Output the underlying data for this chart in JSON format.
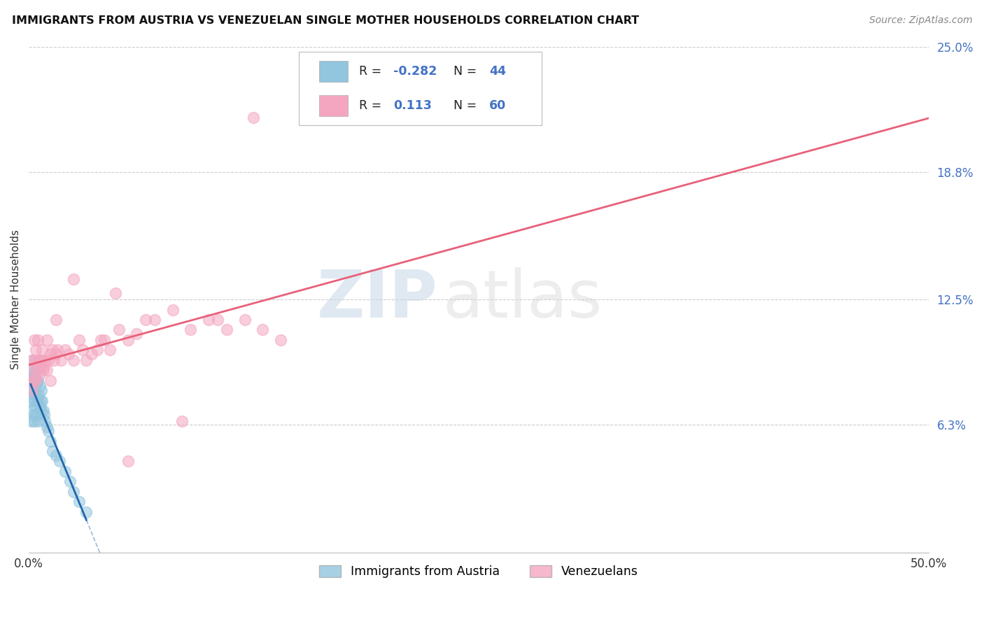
{
  "title": "IMMIGRANTS FROM AUSTRIA VS VENEZUELAN SINGLE MOTHER HOUSEHOLDS CORRELATION CHART",
  "source": "Source: ZipAtlas.com",
  "ylabel": "Single Mother Households",
  "xmin": 0.0,
  "xmax": 50.0,
  "ymin": 0.0,
  "ymax": 25.0,
  "ytick_vals": [
    6.3,
    12.5,
    18.8,
    25.0
  ],
  "xtick_vals": [
    0.0,
    50.0
  ],
  "blue_color": "#92c5de",
  "pink_color": "#f4a6c0",
  "blue_line_color": "#2166ac",
  "pink_line_color": "#e8607a",
  "background_color": "#ffffff",
  "grid_color": "#cccccc",
  "watermark_zip": "ZIP",
  "watermark_atlas": "atlas",
  "austria_x": [
    0.1,
    0.1,
    0.15,
    0.15,
    0.2,
    0.2,
    0.2,
    0.25,
    0.25,
    0.25,
    0.3,
    0.3,
    0.3,
    0.35,
    0.35,
    0.4,
    0.4,
    0.4,
    0.45,
    0.45,
    0.5,
    0.5,
    0.5,
    0.55,
    0.6,
    0.6,
    0.65,
    0.7,
    0.7,
    0.75,
    0.8,
    0.85,
    0.9,
    1.0,
    1.1,
    1.2,
    1.3,
    1.5,
    1.7,
    2.0,
    2.3,
    2.5,
    2.8,
    3.2
  ],
  "austria_y": [
    7.5,
    8.5,
    6.5,
    9.0,
    7.0,
    8.0,
    9.5,
    6.8,
    7.8,
    8.8,
    6.5,
    7.5,
    8.5,
    7.2,
    8.2,
    6.8,
    7.8,
    9.0,
    7.5,
    8.5,
    6.5,
    7.5,
    8.5,
    7.8,
    7.2,
    8.2,
    7.5,
    7.0,
    8.0,
    7.5,
    7.0,
    6.8,
    6.5,
    6.2,
    6.0,
    5.5,
    5.0,
    4.8,
    4.5,
    4.0,
    3.5,
    3.0,
    2.5,
    2.0
  ],
  "venezuela_x": [
    0.1,
    0.15,
    0.2,
    0.25,
    0.3,
    0.3,
    0.35,
    0.4,
    0.4,
    0.5,
    0.5,
    0.55,
    0.6,
    0.65,
    0.7,
    0.75,
    0.8,
    0.9,
    1.0,
    1.0,
    1.1,
    1.2,
    1.3,
    1.4,
    1.5,
    1.6,
    1.8,
    2.0,
    2.2,
    2.5,
    2.8,
    3.0,
    3.5,
    4.0,
    4.5,
    5.0,
    5.5,
    6.0,
    7.0,
    8.0,
    9.0,
    10.0,
    11.0,
    12.0,
    13.0,
    14.0,
    4.8,
    10.5,
    6.5,
    2.5,
    1.5,
    3.8,
    5.5,
    8.5,
    3.2,
    1.2,
    0.8,
    0.6,
    4.2,
    12.5
  ],
  "venezuela_y": [
    8.5,
    9.5,
    8.0,
    9.0,
    8.5,
    10.5,
    9.5,
    8.5,
    10.0,
    9.0,
    10.5,
    9.5,
    8.8,
    9.2,
    9.5,
    10.0,
    9.2,
    9.5,
    9.0,
    10.5,
    9.5,
    9.8,
    10.0,
    9.5,
    9.8,
    10.0,
    9.5,
    10.0,
    9.8,
    9.5,
    10.5,
    10.0,
    9.8,
    10.5,
    10.0,
    11.0,
    10.5,
    10.8,
    11.5,
    12.0,
    11.0,
    11.5,
    11.0,
    11.5,
    11.0,
    10.5,
    12.8,
    11.5,
    11.5,
    13.5,
    11.5,
    10.0,
    4.5,
    6.5,
    9.5,
    8.5,
    9.0,
    9.5,
    10.5,
    21.5
  ]
}
